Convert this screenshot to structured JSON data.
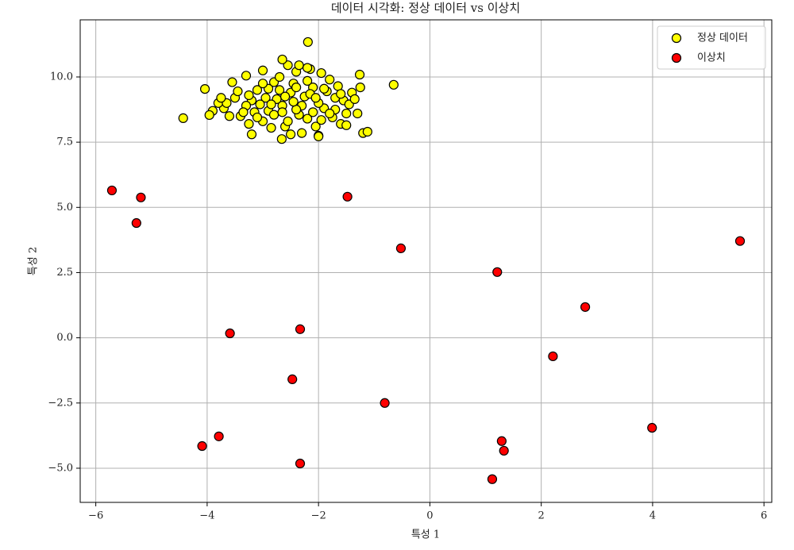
{
  "chart_data": {
    "type": "scatter",
    "title": "데이터 시각화: 정상 데이터 vs 이상치",
    "x_label": "특성 1",
    "y_label": "특성 2",
    "xlim": [
      -6.28,
      6.14
    ],
    "ylim": [
      -6.31,
      12.19
    ],
    "xticks": [
      {
        "value": -6,
        "label": "−6"
      },
      {
        "value": -4,
        "label": "−4"
      },
      {
        "value": -2,
        "label": "−2"
      },
      0,
      2,
      4,
      6
    ],
    "yticks": [
      {
        "value": -5,
        "label": "−5.0"
      },
      {
        "value": -2.5,
        "label": "−2.5"
      },
      {
        "value": 0,
        "label": "0.0"
      },
      {
        "value": 2.5,
        "label": "2.5"
      },
      {
        "value": 5,
        "label": "5.0"
      },
      {
        "value": 7.5,
        "label": "7.5"
      },
      {
        "value": 10,
        "label": "10.0"
      }
    ],
    "grid": true,
    "legend": "upper right",
    "series": [
      {
        "name": "정상 데이터",
        "color": "#ffff00",
        "x": [
          -3.2,
          -2.9,
          -2.5,
          -2.3,
          -2.1,
          -2.8,
          -3.4,
          -3.0,
          -2.6,
          -2.2,
          -1.9,
          -1.7,
          -1.5,
          -1.4,
          -1.8,
          -2.4,
          -2.7,
          -3.1,
          -3.5,
          -3.7,
          -3.8,
          -3.3,
          -2.0,
          -2.35,
          -2.65,
          -2.95,
          -3.15,
          -2.45,
          -2.15,
          -1.95,
          -1.6,
          -1.3,
          -1.25,
          -1.55,
          -1.75,
          -2.05,
          -2.55,
          -2.85,
          -3.25,
          -3.6,
          -3.9,
          -3.55,
          -3.3,
          -3.0,
          -2.7,
          -2.25,
          -2.75,
          -3.05,
          -2.4,
          -2.1,
          -1.85,
          -1.65,
          -1.45,
          -1.35,
          -2.3,
          -2.5,
          -2.0,
          -3.2,
          -1.2,
          -1.5,
          -2.8,
          -3.45,
          -3.65,
          -2.6,
          -2.2,
          -1.9,
          -3.35,
          -2.9,
          -2.45,
          -2.15,
          -3.0,
          -2.35,
          -2.2,
          -2.55,
          -1.7,
          -1.95,
          -2.65,
          -3.1,
          -3.75,
          -1.6,
          -2.05,
          -2.85,
          -2.4,
          -3.25,
          -1.8,
          -4.43,
          -4.04,
          -3.96,
          -2.19,
          -0.65,
          -1.12,
          -1.26,
          -2.65,
          -2.66,
          -2.0
        ],
        "y": [
          9.1,
          8.7,
          9.4,
          8.9,
          9.6,
          9.8,
          8.5,
          8.3,
          8.1,
          8.4,
          8.8,
          9.2,
          8.6,
          9.4,
          9.9,
          10.2,
          9.5,
          9.5,
          9.2,
          8.8,
          9.0,
          8.9,
          9.0,
          8.55,
          8.9,
          9.2,
          8.65,
          9.75,
          10.3,
          10.15,
          8.2,
          8.6,
          9.6,
          9.1,
          8.45,
          8.1,
          8.3,
          8.05,
          8.2,
          8.5,
          8.7,
          9.8,
          10.05,
          10.25,
          10.0,
          9.25,
          9.15,
          8.95,
          8.75,
          8.65,
          9.45,
          9.65,
          8.95,
          9.15,
          7.85,
          7.8,
          7.75,
          7.8,
          7.85,
          8.15,
          8.55,
          9.45,
          9.0,
          9.25,
          9.85,
          9.55,
          8.65,
          9.55,
          9.05,
          9.35,
          9.75,
          10.45,
          10.35,
          10.45,
          8.75,
          8.35,
          8.65,
          8.45,
          9.2,
          9.35,
          9.2,
          8.95,
          9.6,
          9.3,
          8.6,
          8.42,
          9.54,
          8.54,
          11.34,
          9.7,
          7.9,
          10.09,
          10.67,
          7.62,
          7.72
        ]
      },
      {
        "name": "이상치",
        "color": "#ff0000",
        "x": [
          -5.71,
          -5.19,
          -5.27,
          -1.48,
          -0.52,
          1.21,
          5.57,
          2.79,
          -3.59,
          -2.33,
          2.21,
          -2.47,
          -0.81,
          3.99,
          -4.09,
          -3.79,
          1.29,
          1.33,
          -2.33,
          1.12
        ],
        "y": [
          5.65,
          5.38,
          4.4,
          5.41,
          3.43,
          2.52,
          3.71,
          1.18,
          0.17,
          0.33,
          -0.71,
          -1.59,
          -2.5,
          -3.45,
          -4.15,
          -3.78,
          -3.96,
          -4.33,
          -4.82,
          -5.42
        ]
      }
    ]
  }
}
